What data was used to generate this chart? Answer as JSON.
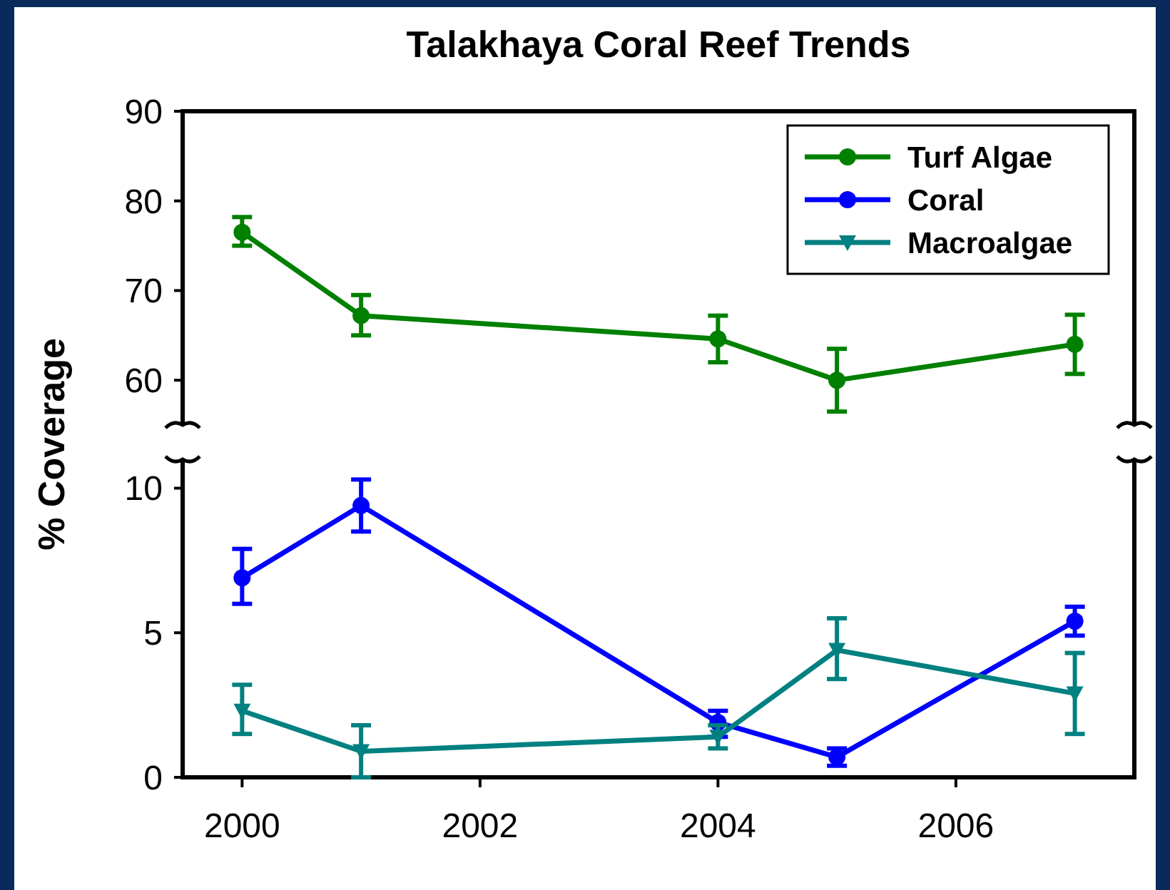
{
  "chart_data": [
    {
      "type": "line",
      "title": "Talakhaya Coral Reef Trends",
      "ylabel": "% Coverage",
      "x": [
        2000,
        2001,
        2004,
        2005,
        2007
      ],
      "xlim": [
        1999.5,
        2007.5
      ],
      "ylim": [
        55,
        90
      ],
      "yticks": [
        60,
        70,
        80,
        90
      ],
      "tick_labels": "y",
      "legend": "top right",
      "grid": false,
      "series": [
        {
          "name": "Turf Algae",
          "color": "#008000",
          "marker": "circle",
          "values": [
            76.5,
            67.2,
            64.6,
            60,
            64
          ],
          "errors": [
            [
              75,
              78.2
            ],
            [
              65,
              69.5
            ],
            [
              62,
              67.2
            ],
            [
              56.5,
              63.5
            ],
            [
              60.7,
              67.3
            ]
          ]
        }
      ]
    },
    {
      "type": "line",
      "x": [
        2000,
        2001,
        2004,
        2005,
        2007
      ],
      "xlim": [
        1999.5,
        2007.5
      ],
      "xticks": [
        2000,
        2002,
        2004,
        2006
      ],
      "ylim": [
        0,
        11
      ],
      "yticks": [
        0,
        5,
        10
      ],
      "grid": false,
      "legend": "top right",
      "series": [
        {
          "name": "Coral",
          "color": "#0000ff",
          "marker": "circle",
          "values": [
            6.9,
            9.4,
            1.9,
            0.7,
            5.4
          ],
          "errors": [
            [
              6,
              7.9
            ],
            [
              8.5,
              10.3
            ],
            [
              1.4,
              2.3
            ],
            [
              0.4,
              1
            ],
            [
              4.9,
              5.9
            ]
          ]
        },
        {
          "name": "Macroalgae",
          "color": "#008080",
          "marker": "triangle",
          "values": [
            2.3,
            0.9,
            1.4,
            4.4,
            2.9
          ],
          "errors": [
            [
              1.5,
              3.2
            ],
            [
              0,
              1.8
            ],
            [
              1,
              1.8
            ],
            [
              3.4,
              5.5
            ],
            [
              1.5,
              4.3
            ]
          ]
        }
      ]
    }
  ]
}
